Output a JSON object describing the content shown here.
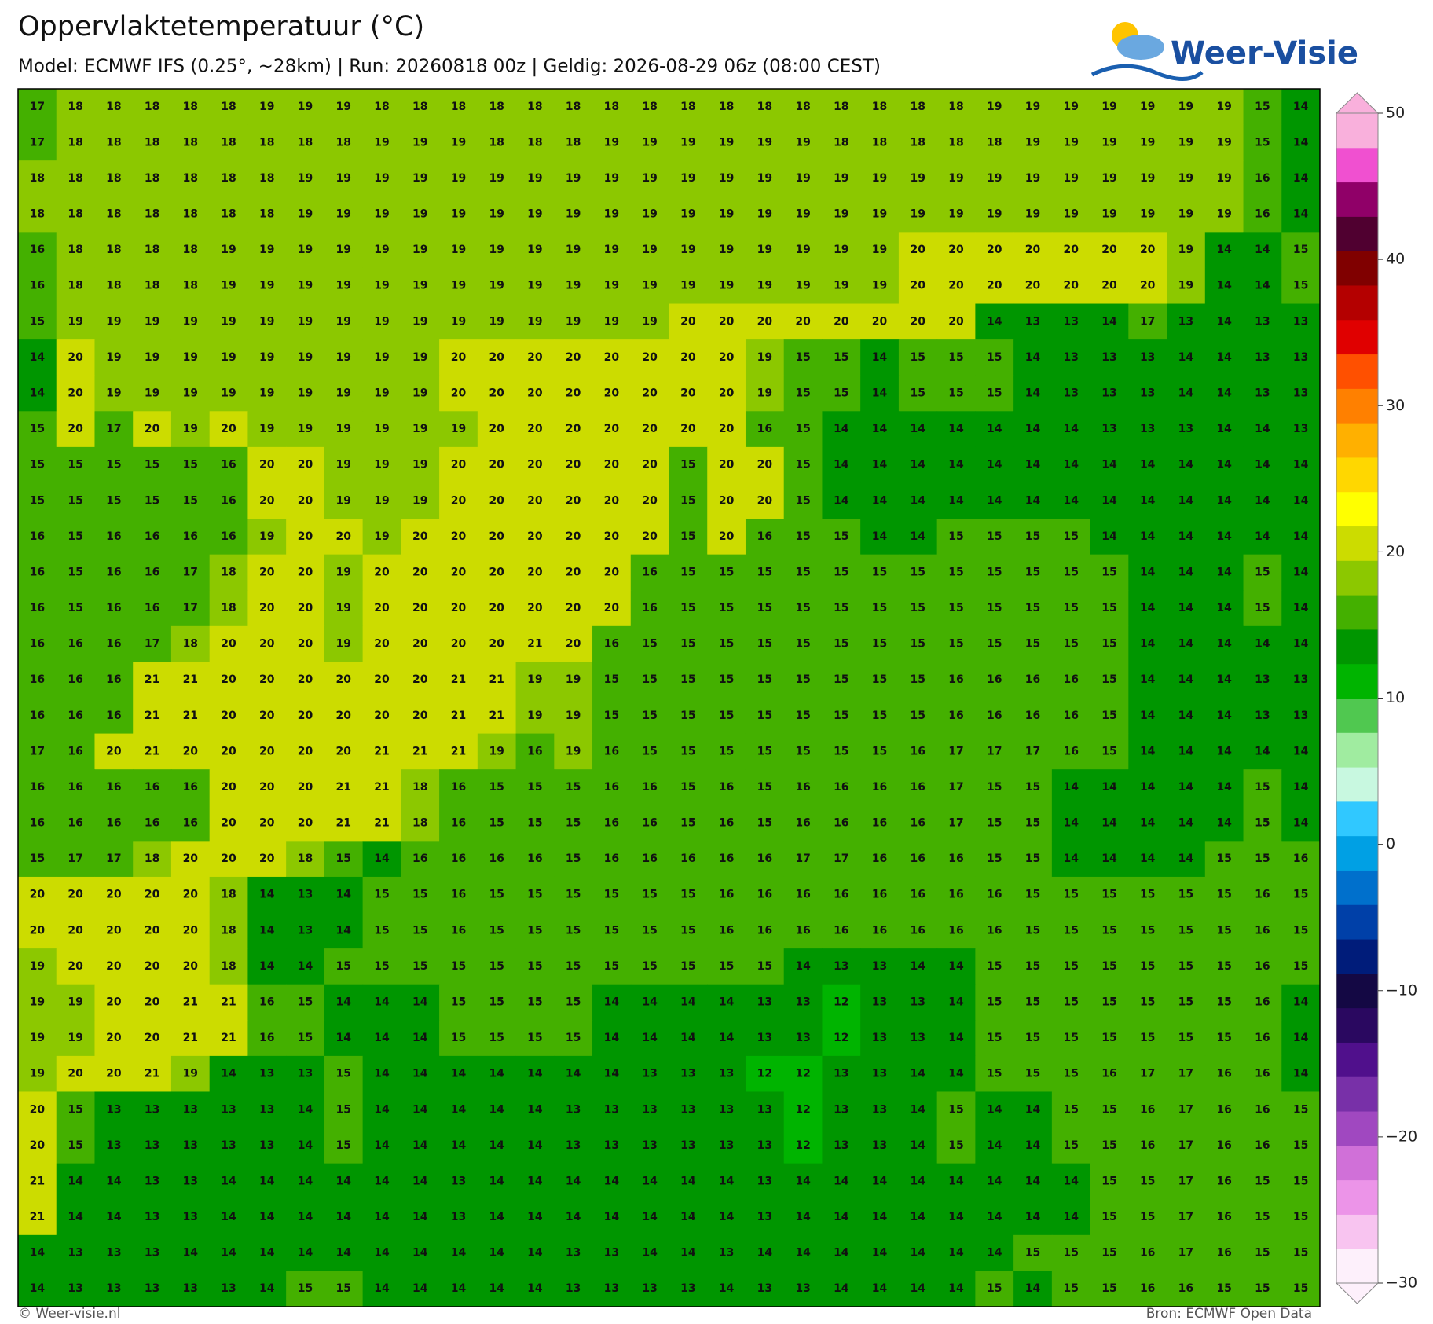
{
  "title": "Oppervlaktetemperatuur (°C)",
  "subtitle": "Model: ECMWF IFS (0.25°, ~28km)  |  Run: 20260818 00z  |  Geldig: 2026-08-29 06z (08:00 CEST)",
  "logo": "Weer-Visie",
  "footer_left": "© Weer-visie.nl",
  "footer_right": "Bron: ECMWF Open Data",
  "colorbar": {
    "lim": [
      -30,
      50
    ],
    "ticks": [
      {
        "value": -30,
        "label": "−30"
      },
      {
        "value": -20,
        "label": "−20"
      },
      {
        "value": -10,
        "label": "−10"
      },
      0,
      10,
      20,
      30,
      40,
      50
    ],
    "colors": [
      "#fdf0fb",
      "#f8c4f0",
      "#ec94e8",
      "#d070d8",
      "#a048c0",
      "#7830a8",
      "#50108c",
      "#2a0860",
      "#140844",
      "#001c7a",
      "#0040a8",
      "#0070cc",
      "#00a0e4",
      "#30c8ff",
      "#c8f8e0",
      "#a0eca0",
      "#50c850",
      "#00b400",
      "#009600",
      "#44b000",
      "#8cc800",
      "#ccdc00",
      "#ffff00",
      "#ffd700",
      "#ffb000",
      "#ff8000",
      "#ff5000",
      "#e00000",
      "#b40000",
      "#800000",
      "#500030",
      "#900068",
      "#f050d0",
      "#f9b0dc"
    ]
  },
  "grid": {
    "rows": [
      [
        17,
        18,
        18,
        18,
        18,
        18,
        19,
        19,
        19,
        18,
        18,
        18,
        18,
        18,
        18,
        18,
        18,
        18,
        18,
        18,
        18,
        18,
        18,
        18,
        18,
        19,
        19,
        19,
        19,
        19,
        19,
        19,
        15,
        14
      ],
      [
        17,
        18,
        18,
        18,
        18,
        18,
        18,
        18,
        18,
        19,
        19,
        19,
        18,
        18,
        18,
        19,
        19,
        19,
        19,
        19,
        19,
        18,
        18,
        18,
        18,
        18,
        19,
        19,
        19,
        19,
        19,
        19,
        15,
        14
      ],
      [
        18,
        18,
        18,
        18,
        18,
        18,
        18,
        19,
        19,
        19,
        19,
        19,
        19,
        19,
        19,
        19,
        19,
        19,
        19,
        19,
        19,
        19,
        19,
        19,
        19,
        19,
        19,
        19,
        19,
        19,
        19,
        19,
        16,
        14
      ],
      [
        18,
        18,
        18,
        18,
        18,
        18,
        18,
        19,
        19,
        19,
        19,
        19,
        19,
        19,
        19,
        19,
        19,
        19,
        19,
        19,
        19,
        19,
        19,
        19,
        19,
        19,
        19,
        19,
        19,
        19,
        19,
        19,
        16,
        14
      ],
      [
        16,
        18,
        18,
        18,
        18,
        19,
        19,
        19,
        19,
        19,
        19,
        19,
        19,
        19,
        19,
        19,
        19,
        19,
        19,
        19,
        19,
        19,
        19,
        20,
        20,
        20,
        20,
        20,
        20,
        20,
        19,
        14,
        14,
        15
      ],
      [
        16,
        18,
        18,
        18,
        18,
        19,
        19,
        19,
        19,
        19,
        19,
        19,
        19,
        19,
        19,
        19,
        19,
        19,
        19,
        19,
        19,
        19,
        19,
        20,
        20,
        20,
        20,
        20,
        20,
        20,
        19,
        14,
        14,
        15
      ],
      [
        15,
        19,
        19,
        19,
        19,
        19,
        19,
        19,
        19,
        19,
        19,
        19,
        19,
        19,
        19,
        19,
        19,
        20,
        20,
        20,
        20,
        20,
        20,
        20,
        20,
        14,
        13,
        13,
        14,
        17,
        13,
        14,
        13,
        13
      ],
      [
        14,
        20,
        19,
        19,
        19,
        19,
        19,
        19,
        19,
        19,
        19,
        20,
        20,
        20,
        20,
        20,
        20,
        20,
        20,
        19,
        15,
        15,
        14,
        15,
        15,
        15,
        14,
        13,
        13,
        13,
        14,
        14,
        13,
        13
      ],
      [
        14,
        20,
        19,
        19,
        19,
        19,
        19,
        19,
        19,
        19,
        19,
        20,
        20,
        20,
        20,
        20,
        20,
        20,
        20,
        19,
        15,
        15,
        14,
        15,
        15,
        15,
        14,
        13,
        13,
        13,
        14,
        14,
        13,
        13
      ],
      [
        15,
        20,
        17,
        20,
        19,
        20,
        19,
        19,
        19,
        19,
        19,
        19,
        20,
        20,
        20,
        20,
        20,
        20,
        20,
        16,
        15,
        14,
        14,
        14,
        14,
        14,
        14,
        14,
        13,
        13,
        13,
        14,
        14,
        13
      ],
      [
        15,
        15,
        15,
        15,
        15,
        16,
        20,
        20,
        19,
        19,
        19,
        20,
        20,
        20,
        20,
        20,
        20,
        15,
        20,
        20,
        15,
        14,
        14,
        14,
        14,
        14,
        14,
        14,
        14,
        14,
        14,
        14,
        14,
        14
      ],
      [
        15,
        15,
        15,
        15,
        15,
        16,
        20,
        20,
        19,
        19,
        19,
        20,
        20,
        20,
        20,
        20,
        20,
        15,
        20,
        20,
        15,
        14,
        14,
        14,
        14,
        14,
        14,
        14,
        14,
        14,
        14,
        14,
        14,
        14
      ],
      [
        16,
        15,
        16,
        16,
        16,
        16,
        19,
        20,
        20,
        19,
        20,
        20,
        20,
        20,
        20,
        20,
        20,
        15,
        20,
        16,
        15,
        15,
        14,
        14,
        15,
        15,
        15,
        15,
        14,
        14,
        14,
        14,
        14,
        14
      ],
      [
        16,
        15,
        16,
        16,
        17,
        18,
        20,
        20,
        19,
        20,
        20,
        20,
        20,
        20,
        20,
        20,
        16,
        15,
        15,
        15,
        15,
        15,
        15,
        15,
        15,
        15,
        15,
        15,
        15,
        14,
        14,
        14,
        15,
        14
      ],
      [
        16,
        15,
        16,
        16,
        17,
        18,
        20,
        20,
        19,
        20,
        20,
        20,
        20,
        20,
        20,
        20,
        16,
        15,
        15,
        15,
        15,
        15,
        15,
        15,
        15,
        15,
        15,
        15,
        15,
        14,
        14,
        14,
        15,
        14
      ],
      [
        16,
        16,
        16,
        17,
        18,
        20,
        20,
        20,
        19,
        20,
        20,
        20,
        20,
        21,
        20,
        16,
        15,
        15,
        15,
        15,
        15,
        15,
        15,
        15,
        15,
        15,
        15,
        15,
        15,
        14,
        14,
        14,
        14,
        14
      ],
      [
        16,
        16,
        16,
        21,
        21,
        20,
        20,
        20,
        20,
        20,
        20,
        21,
        21,
        19,
        19,
        15,
        15,
        15,
        15,
        15,
        15,
        15,
        15,
        15,
        16,
        16,
        16,
        16,
        15,
        14,
        14,
        14,
        13,
        13
      ],
      [
        16,
        16,
        16,
        21,
        21,
        20,
        20,
        20,
        20,
        20,
        20,
        21,
        21,
        19,
        19,
        15,
        15,
        15,
        15,
        15,
        15,
        15,
        15,
        15,
        16,
        16,
        16,
        16,
        15,
        14,
        14,
        14,
        13,
        13
      ],
      [
        17,
        16,
        20,
        21,
        20,
        20,
        20,
        20,
        20,
        21,
        21,
        21,
        19,
        16,
        19,
        16,
        15,
        15,
        15,
        15,
        15,
        15,
        15,
        16,
        17,
        17,
        17,
        16,
        15,
        14,
        14,
        14,
        14,
        14
      ],
      [
        16,
        16,
        16,
        16,
        16,
        20,
        20,
        20,
        21,
        21,
        18,
        16,
        15,
        15,
        15,
        16,
        16,
        15,
        16,
        15,
        16,
        16,
        16,
        16,
        17,
        15,
        15,
        14,
        14,
        14,
        14,
        14,
        15,
        14
      ],
      [
        16,
        16,
        16,
        16,
        16,
        20,
        20,
        20,
        21,
        21,
        18,
        16,
        15,
        15,
        15,
        16,
        16,
        15,
        16,
        15,
        16,
        16,
        16,
        16,
        17,
        15,
        15,
        14,
        14,
        14,
        14,
        14,
        15,
        14
      ],
      [
        15,
        17,
        17,
        18,
        20,
        20,
        20,
        18,
        15,
        14,
        16,
        16,
        16,
        16,
        15,
        16,
        16,
        16,
        16,
        16,
        17,
        17,
        16,
        16,
        16,
        15,
        15,
        14,
        14,
        14,
        14,
        15,
        15,
        16
      ],
      [
        20,
        20,
        20,
        20,
        20,
        18,
        14,
        13,
        14,
        15,
        15,
        16,
        15,
        15,
        15,
        15,
        15,
        15,
        16,
        16,
        16,
        16,
        16,
        16,
        16,
        16,
        15,
        15,
        15,
        15,
        15,
        15,
        16,
        15
      ],
      [
        20,
        20,
        20,
        20,
        20,
        18,
        14,
        13,
        14,
        15,
        15,
        16,
        15,
        15,
        15,
        15,
        15,
        15,
        16,
        16,
        16,
        16,
        16,
        16,
        16,
        16,
        15,
        15,
        15,
        15,
        15,
        15,
        16,
        15
      ],
      [
        19,
        20,
        20,
        20,
        20,
        18,
        14,
        14,
        15,
        15,
        15,
        15,
        15,
        15,
        15,
        15,
        15,
        15,
        15,
        15,
        14,
        13,
        13,
        14,
        14,
        15,
        15,
        15,
        15,
        15,
        15,
        15,
        16,
        15
      ],
      [
        19,
        19,
        20,
        20,
        21,
        21,
        16,
        15,
        14,
        14,
        14,
        15,
        15,
        15,
        15,
        14,
        14,
        14,
        14,
        13,
        13,
        12,
        13,
        13,
        14,
        15,
        15,
        15,
        15,
        15,
        15,
        15,
        16,
        14
      ],
      [
        19,
        19,
        20,
        20,
        21,
        21,
        16,
        15,
        14,
        14,
        14,
        15,
        15,
        15,
        15,
        14,
        14,
        14,
        14,
        13,
        13,
        12,
        13,
        13,
        14,
        15,
        15,
        15,
        15,
        15,
        15,
        15,
        16,
        14
      ],
      [
        19,
        20,
        20,
        21,
        19,
        14,
        13,
        13,
        15,
        14,
        14,
        14,
        14,
        14,
        14,
        14,
        13,
        13,
        13,
        12,
        12,
        13,
        13,
        14,
        14,
        15,
        15,
        15,
        16,
        17,
        17,
        16,
        16,
        14
      ],
      [
        20,
        15,
        13,
        13,
        13,
        13,
        13,
        14,
        15,
        14,
        14,
        14,
        14,
        14,
        13,
        13,
        13,
        13,
        13,
        13,
        12,
        13,
        13,
        14,
        15,
        14,
        14,
        15,
        15,
        16,
        17,
        16,
        16,
        15
      ],
      [
        20,
        15,
        13,
        13,
        13,
        13,
        13,
        14,
        15,
        14,
        14,
        14,
        14,
        14,
        13,
        13,
        13,
        13,
        13,
        13,
        12,
        13,
        13,
        14,
        15,
        14,
        14,
        15,
        15,
        16,
        17,
        16,
        16,
        15
      ],
      [
        21,
        14,
        14,
        13,
        13,
        14,
        14,
        14,
        14,
        14,
        14,
        13,
        14,
        14,
        14,
        14,
        14,
        14,
        14,
        13,
        14,
        14,
        14,
        14,
        14,
        14,
        14,
        14,
        15,
        15,
        17,
        16,
        15,
        15
      ],
      [
        21,
        14,
        14,
        13,
        13,
        14,
        14,
        14,
        14,
        14,
        14,
        13,
        14,
        14,
        14,
        14,
        14,
        14,
        14,
        13,
        14,
        14,
        14,
        14,
        14,
        14,
        14,
        14,
        15,
        15,
        17,
        16,
        15,
        15
      ],
      [
        14,
        13,
        13,
        13,
        14,
        14,
        14,
        14,
        14,
        14,
        14,
        14,
        14,
        14,
        13,
        13,
        14,
        14,
        13,
        14,
        14,
        14,
        14,
        14,
        14,
        14,
        15,
        15,
        15,
        16,
        17,
        16,
        15,
        15
      ],
      [
        14,
        13,
        13,
        13,
        13,
        13,
        14,
        15,
        15,
        14,
        14,
        14,
        14,
        14,
        13,
        13,
        13,
        13,
        14,
        13,
        13,
        14,
        14,
        14,
        14,
        15,
        14,
        15,
        15,
        16,
        16,
        15,
        15,
        15
      ]
    ]
  }
}
